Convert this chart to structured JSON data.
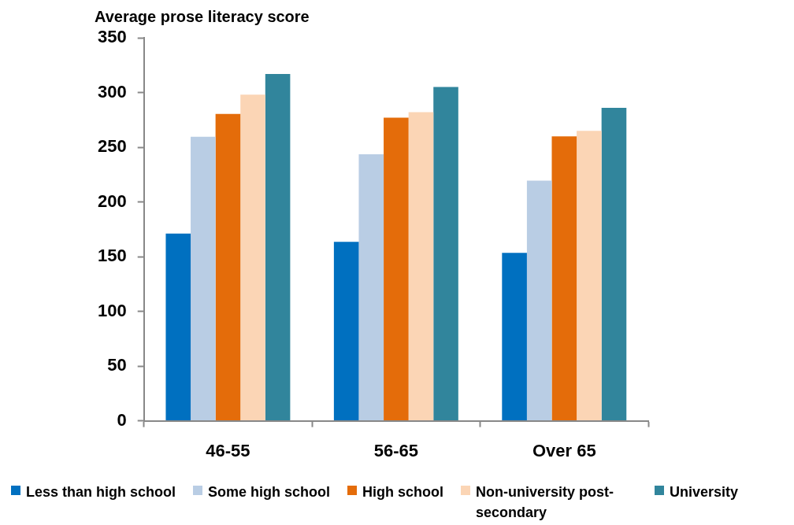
{
  "chart_data": {
    "type": "bar",
    "ylabel": "Average prose literacy score",
    "categories": [
      "46-55",
      "56-65",
      "Over 65"
    ],
    "series": [
      {
        "name": "Less than high school",
        "color": "#0070c0",
        "values": [
          171,
          163.5,
          153.5
        ]
      },
      {
        "name": "Some high school",
        "color": "#b9cde4",
        "values": [
          259.5,
          243.5,
          219.5
        ]
      },
      {
        "name": "High school",
        "color": "#e46c0a",
        "values": [
          280.5,
          277,
          260
        ]
      },
      {
        "name": "Non-university post-secondary",
        "color": "#fbd5b5",
        "values": [
          298,
          282,
          265
        ]
      },
      {
        "name": "University",
        "color": "#31859c",
        "values": [
          317,
          305,
          286
        ]
      }
    ],
    "ylim": [
      0,
      350
    ],
    "yticks": [
      0,
      50,
      100,
      150,
      200,
      250,
      300,
      350
    ],
    "grid": false,
    "legend": "bottom"
  }
}
